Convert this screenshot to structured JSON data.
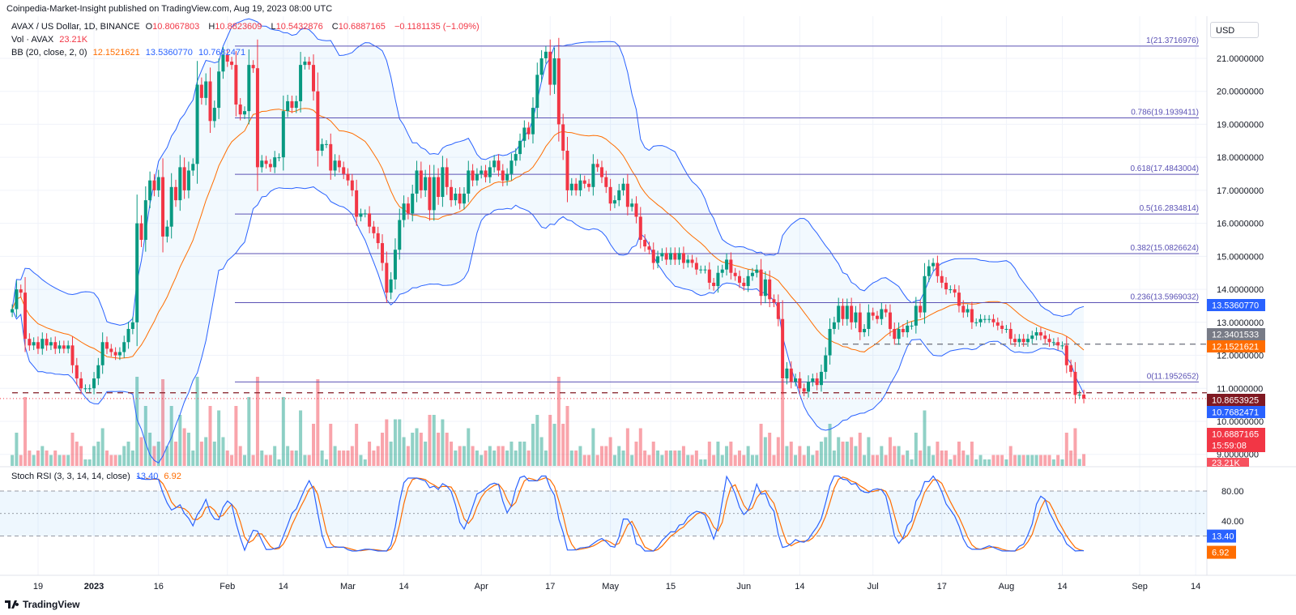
{
  "header": {
    "published": "Coinpedia-Market-Insight published on TradingView.com, Aug 19, 2023 08:00 UTC",
    "symbol": "AVAX / US Dollar, 1D, BINANCE",
    "open_label": "O",
    "open": "10.8067803",
    "high_label": "H",
    "high": "10.8823609",
    "low_label": "L",
    "low": "10.5432876",
    "close_label": "C",
    "close": "10.6887165",
    "change": "−0.1181135 (−1.09%)",
    "vol_label": "Vol · AVAX",
    "vol": "23.21K",
    "bb_label": "BB (20, close, 2, 0)",
    "bb_basis": "12.1521621",
    "bb_upper": "13.5360770",
    "bb_lower": "10.7682471",
    "stoch_label": "Stoch RSI (3, 3, 14, 14, close)",
    "stoch_k": "13.40",
    "stoch_d": "6.92"
  },
  "currency_button": "USD",
  "logo": "TradingView",
  "colors": {
    "up": "#089981",
    "down": "#f23645",
    "bb_basis": "#ff6d00",
    "bb_band": "#2962ff",
    "fib": "#5b52b5",
    "stoch_k": "#2962ff",
    "stoch_d": "#ff6d00"
  },
  "price_axis": [
    "21.0000000",
    "20.0000000",
    "19.0000000",
    "18.0000000",
    "17.0000000",
    "16.0000000",
    "15.0000000",
    "14.0000000",
    "13.0000000",
    "12.0000000",
    "11.0000000",
    "10.0000000",
    "9.0000000"
  ],
  "price_badges": [
    {
      "value": "13.5360770",
      "price": 13.536077,
      "color": "#2962ff"
    },
    {
      "value": "12.3401533",
      "price": 12.3401533,
      "color": "#787b86"
    },
    {
      "value": "12.1521621",
      "price": 12.1521621,
      "color": "#ff6d00"
    },
    {
      "value": "10.8653925",
      "price": 10.8653925,
      "color": "#801922"
    },
    {
      "value": "10.7682471",
      "price": 10.7682471,
      "color": "#2962ff"
    },
    {
      "value": "10.6887165",
      "price": 10.6887165,
      "color": "#f23645",
      "countdown": "15:59:08"
    }
  ],
  "vol_badge": "23.21K",
  "stoch_axis": [
    "80.00",
    "40.00"
  ],
  "stoch_badges": [
    {
      "value": "13.40",
      "level": 13.4,
      "color": "#2962ff"
    },
    {
      "value": "6.92",
      "level": 6.92,
      "color": "#ff6d00"
    }
  ],
  "time_axis": [
    {
      "label": "19",
      "date": "2022-12-19"
    },
    {
      "label": "2023",
      "date": "2023-01-01"
    },
    {
      "label": "16",
      "date": "2023-01-16"
    },
    {
      "label": "Feb",
      "date": "2023-02-01"
    },
    {
      "label": "14",
      "date": "2023-02-14"
    },
    {
      "label": "Mar",
      "date": "2023-03-01"
    },
    {
      "label": "14",
      "date": "2023-03-14"
    },
    {
      "label": "Apr",
      "date": "2023-04-01"
    },
    {
      "label": "17",
      "date": "2023-04-17"
    },
    {
      "label": "May",
      "date": "2023-05-01"
    },
    {
      "label": "15",
      "date": "2023-05-15"
    },
    {
      "label": "Jun",
      "date": "2023-06-01"
    },
    {
      "label": "14",
      "date": "2023-06-14"
    },
    {
      "label": "Jul",
      "date": "2023-07-01"
    },
    {
      "label": "17",
      "date": "2023-07-17"
    },
    {
      "label": "Aug",
      "date": "2023-08-01"
    },
    {
      "label": "14",
      "date": "2023-08-14"
    },
    {
      "label": "Sep",
      "date": "2023-09-01"
    },
    {
      "label": "14",
      "date": "2023-09-14"
    }
  ],
  "chart_data": {
    "type": "candlestick",
    "ylim": [
      9,
      21.6
    ],
    "grid": true,
    "fib_levels": [
      {
        "label": "1(21.3716976)",
        "price": 21.3716976
      },
      {
        "label": "0.786(19.1939411)",
        "price": 19.1939411
      },
      {
        "label": "0.618(17.4843004)",
        "price": 17.4843004
      },
      {
        "label": "0.5(16.2834814)",
        "price": 16.2834814
      },
      {
        "label": "0.382(15.0826624)",
        "price": 15.0826624
      },
      {
        "label": "0.236(13.5969032)",
        "price": 13.5969032
      },
      {
        "label": "0(11.1952652)",
        "price": 11.1952652
      }
    ],
    "horizontal_lines": [
      {
        "price": 10.8653925,
        "style": "dashed",
        "color": "#801922"
      },
      {
        "price": 12.3401533,
        "style": "dashed",
        "color": "#787b86"
      }
    ],
    "indicators": [
      "Bollinger Bands (20, close, 2, 0)",
      "Volume",
      "Stoch RSI (3, 3, 14, 14, close)"
    ],
    "stoch_levels": [
      80,
      50,
      20
    ],
    "x": [
      "2022-12-13",
      "2022-12-14",
      "2022-12-15",
      "2022-12-16",
      "2022-12-17",
      "2022-12-18",
      "2022-12-19",
      "2022-12-20",
      "2022-12-21",
      "2022-12-22",
      "2022-12-23",
      "2022-12-24",
      "2022-12-25",
      "2022-12-26",
      "2022-12-27",
      "2022-12-28",
      "2022-12-29",
      "2022-12-30",
      "2022-12-31",
      "2023-01-01",
      "2023-01-02",
      "2023-01-03",
      "2023-01-04",
      "2023-01-05",
      "2023-01-06",
      "2023-01-07",
      "2023-01-08",
      "2023-01-09",
      "2023-01-10",
      "2023-01-11",
      "2023-01-12",
      "2023-01-13",
      "2023-01-14",
      "2023-01-15",
      "2023-01-16",
      "2023-01-17",
      "2023-01-18",
      "2023-01-19",
      "2023-01-20",
      "2023-01-21",
      "2023-01-22",
      "2023-01-23",
      "2023-01-24",
      "2023-01-25",
      "2023-01-26",
      "2023-01-27",
      "2023-01-28",
      "2023-01-29",
      "2023-01-30",
      "2023-01-31",
      "2023-02-01",
      "2023-02-02",
      "2023-02-03",
      "2023-02-04",
      "2023-02-05",
      "2023-02-06",
      "2023-02-07",
      "2023-02-08",
      "2023-02-09",
      "2023-02-10",
      "2023-02-11",
      "2023-02-12",
      "2023-02-13",
      "2023-02-14",
      "2023-02-15",
      "2023-02-16",
      "2023-02-17",
      "2023-02-18",
      "2023-02-19",
      "2023-02-20",
      "2023-02-21",
      "2023-02-22",
      "2023-02-23",
      "2023-02-24",
      "2023-02-25",
      "2023-02-26",
      "2023-02-27",
      "2023-02-28",
      "2023-03-01",
      "2023-03-02",
      "2023-03-03",
      "2023-03-04",
      "2023-03-05",
      "2023-03-06",
      "2023-03-07",
      "2023-03-08",
      "2023-03-09",
      "2023-03-10",
      "2023-03-11",
      "2023-03-12",
      "2023-03-13",
      "2023-03-14",
      "2023-03-15",
      "2023-03-16",
      "2023-03-17",
      "2023-03-18",
      "2023-03-19",
      "2023-03-20",
      "2023-03-21",
      "2023-03-22",
      "2023-03-23",
      "2023-03-24",
      "2023-03-25",
      "2023-03-26",
      "2023-03-27",
      "2023-03-28",
      "2023-03-29",
      "2023-03-30",
      "2023-03-31",
      "2023-04-01",
      "2023-04-02",
      "2023-04-03",
      "2023-04-04",
      "2023-04-05",
      "2023-04-06",
      "2023-04-07",
      "2023-04-08",
      "2023-04-09",
      "2023-04-10",
      "2023-04-11",
      "2023-04-12",
      "2023-04-13",
      "2023-04-14",
      "2023-04-15",
      "2023-04-16",
      "2023-04-17",
      "2023-04-18",
      "2023-04-19",
      "2023-04-20",
      "2023-04-21",
      "2023-04-22",
      "2023-04-23",
      "2023-04-24",
      "2023-04-25",
      "2023-04-26",
      "2023-04-27",
      "2023-04-28",
      "2023-04-29",
      "2023-04-30",
      "2023-05-01",
      "2023-05-02",
      "2023-05-03",
      "2023-05-04",
      "2023-05-05",
      "2023-05-06",
      "2023-05-07",
      "2023-05-08",
      "2023-05-09",
      "2023-05-10",
      "2023-05-11",
      "2023-05-12",
      "2023-05-13",
      "2023-05-14",
      "2023-05-15",
      "2023-05-16",
      "2023-05-17",
      "2023-05-18",
      "2023-05-19",
      "2023-05-20",
      "2023-05-21",
      "2023-05-22",
      "2023-05-23",
      "2023-05-24",
      "2023-05-25",
      "2023-05-26",
      "2023-05-27",
      "2023-05-28",
      "2023-05-29",
      "2023-05-30",
      "2023-05-31",
      "2023-06-01",
      "2023-06-02",
      "2023-06-03",
      "2023-06-04",
      "2023-06-05",
      "2023-06-06",
      "2023-06-07",
      "2023-06-08",
      "2023-06-09",
      "2023-06-10",
      "2023-06-11",
      "2023-06-12",
      "2023-06-13",
      "2023-06-14",
      "2023-06-15",
      "2023-06-16",
      "2023-06-17",
      "2023-06-18",
      "2023-06-19",
      "2023-06-20",
      "2023-06-21",
      "2023-06-22",
      "2023-06-23",
      "2023-06-24",
      "2023-06-25",
      "2023-06-26",
      "2023-06-27",
      "2023-06-28",
      "2023-06-29",
      "2023-06-30",
      "2023-07-01",
      "2023-07-02",
      "2023-07-03",
      "2023-07-04",
      "2023-07-05",
      "2023-07-06",
      "2023-07-07",
      "2023-07-08",
      "2023-07-09",
      "2023-07-10",
      "2023-07-11",
      "2023-07-12",
      "2023-07-13",
      "2023-07-14",
      "2023-07-15",
      "2023-07-16",
      "2023-07-17",
      "2023-07-18",
      "2023-07-19",
      "2023-07-20",
      "2023-07-21",
      "2023-07-22",
      "2023-07-23",
      "2023-07-24",
      "2023-07-25",
      "2023-07-26",
      "2023-07-27",
      "2023-07-28",
      "2023-07-29",
      "2023-07-30",
      "2023-07-31",
      "2023-08-01",
      "2023-08-02",
      "2023-08-03",
      "2023-08-04",
      "2023-08-05",
      "2023-08-06",
      "2023-08-07",
      "2023-08-08",
      "2023-08-09",
      "2023-08-10",
      "2023-08-11",
      "2023-08-12",
      "2023-08-13",
      "2023-08-14",
      "2023-08-15",
      "2023-08-16",
      "2023-08-17",
      "2023-08-18",
      "2023-08-19"
    ],
    "close": [
      13.4,
      14.0,
      13.9,
      12.5,
      12.3,
      12.4,
      12.2,
      12.5,
      12.3,
      12.4,
      12.2,
      12.3,
      12.2,
      12.3,
      11.7,
      11.3,
      11.0,
      11.0,
      11.0,
      11.3,
      11.7,
      12.4,
      12.2,
      12.1,
      12.0,
      12.1,
      12.4,
      12.8,
      13.0,
      16.0,
      15.5,
      16.7,
      17.3,
      17.0,
      17.4,
      15.6,
      15.9,
      17.1,
      16.7,
      17.7,
      17.0,
      17.6,
      17.8,
      20.2,
      19.8,
      20.3,
      19.1,
      19.5,
      20.6,
      21.1,
      20.9,
      20.8,
      19.6,
      19.3,
      19.4,
      20.8,
      20.7,
      17.7,
      17.9,
      17.8,
      17.7,
      18.0,
      18.0,
      19.4,
      19.7,
      19.5,
      19.7,
      20.8,
      20.9,
      20.8,
      20.0,
      18.2,
      18.4,
      18.4,
      17.6,
      17.9,
      17.7,
      17.5,
      17.3,
      17.0,
      16.2,
      16.3,
      16.3,
      15.9,
      15.7,
      15.4,
      14.8,
      13.9,
      14.3,
      15.2,
      16.1,
      16.6,
      16.3,
      16.9,
      17.6,
      17.0,
      17.4,
      16.4,
      17.4,
      16.8,
      17.7,
      17.1,
      16.7,
      16.9,
      16.6,
      16.9,
      17.6,
      17.3,
      17.5,
      17.6,
      17.4,
      17.7,
      17.9,
      17.6,
      17.3,
      17.5,
      17.9,
      18.1,
      18.5,
      18.9,
      18.7,
      19.5,
      20.5,
      21.0,
      21.2,
      20.2,
      21.0,
      19.0,
      18.2,
      17.0,
      17.2,
      17.0,
      17.3,
      17.2,
      17.1,
      17.8,
      17.7,
      17.4,
      17.1,
      16.6,
      16.7,
      17.0,
      17.2,
      16.5,
      16.6,
      16.2,
      15.5,
      15.3,
      15.2,
      14.8,
      15.0,
      15.1,
      14.9,
      15.1,
      14.9,
      15.1,
      14.8,
      14.9,
      14.8,
      14.6,
      14.6,
      14.6,
      14.2,
      14.1,
      14.5,
      14.6,
      14.9,
      14.5,
      14.4,
      14.2,
      14.1,
      14.4,
      14.5,
      14.6,
      13.8,
      14.3,
      13.7,
      13.6,
      13.1,
      11.3,
      11.6,
      11.2,
      11.3,
      11.0,
      10.9,
      11.2,
      11.3,
      11.1,
      11.5,
      12.0,
      12.8,
      13.0,
      13.5,
      13.1,
      13.5,
      13.0,
      13.3,
      12.7,
      12.8,
      13.3,
      13.2,
      13.1,
      13.4,
      13.3,
      12.8,
      12.5,
      12.8,
      12.7,
      12.9,
      12.9,
      13.5,
      13.3,
      14.4,
      14.7,
      14.8,
      14.4,
      14.2,
      14.0,
      14.0,
      13.9,
      13.5,
      13.3,
      13.4,
      13.0,
      13.0,
      13.1,
      13.1,
      13.1,
      13.0,
      12.9,
      12.8,
      12.8,
      12.5,
      12.4,
      12.5,
      12.4,
      12.5,
      12.6,
      12.7,
      12.6,
      12.5,
      12.4,
      12.4,
      12.3,
      12.3,
      11.7,
      11.5,
      10.8,
      10.81,
      10.69
    ]
  }
}
